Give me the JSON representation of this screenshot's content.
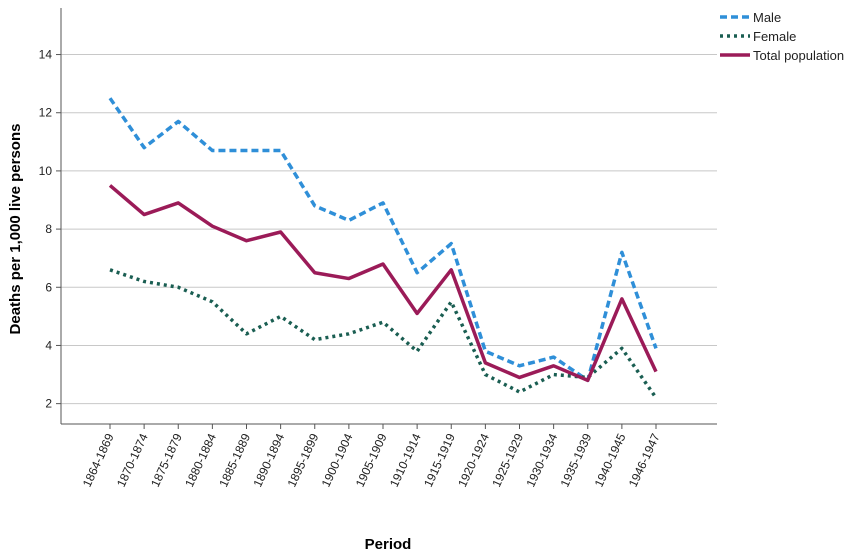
{
  "chart_data": {
    "type": "line",
    "title": "",
    "xlabel": "Period",
    "ylabel": "Deaths per 1,000 live persons",
    "categories": [
      "1864-1869",
      "1870-1874",
      "1875-1879",
      "1880-1884",
      "1885-1889",
      "1890-1894",
      "1895-1899",
      "1900-1904",
      "1905-1909",
      "1910-1914",
      "1915-1919",
      "1920-1924",
      "1925-1929",
      "1930-1934",
      "1935-1939",
      "1940-1945",
      "1946-1947"
    ],
    "yticks": [
      2,
      4,
      6,
      8,
      10,
      12,
      14
    ],
    "ylim": [
      1.3,
      15.6
    ],
    "grid": "horizontal",
    "legend_position": "top-right",
    "series": [
      {
        "name": "Male",
        "color": "#2f8fd8",
        "style": "dashed",
        "values": [
          12.5,
          10.8,
          11.7,
          10.7,
          10.7,
          10.7,
          8.8,
          8.3,
          8.9,
          6.5,
          7.5,
          3.8,
          3.3,
          3.6,
          2.8,
          7.2,
          3.9
        ]
      },
      {
        "name": "Female",
        "color": "#1a5e52",
        "style": "dotted",
        "values": [
          6.6,
          6.2,
          6.0,
          5.5,
          4.4,
          5.0,
          4.2,
          4.4,
          4.8,
          3.8,
          5.5,
          3.0,
          2.4,
          3.0,
          2.9,
          3.9,
          2.2
        ]
      },
      {
        "name": "Total population",
        "color": "#9b1b58",
        "style": "solid",
        "values": [
          9.5,
          8.5,
          8.9,
          8.1,
          7.6,
          7.9,
          6.5,
          6.3,
          6.8,
          5.1,
          6.6,
          3.4,
          2.9,
          3.3,
          2.8,
          5.6,
          3.1
        ]
      }
    ]
  }
}
